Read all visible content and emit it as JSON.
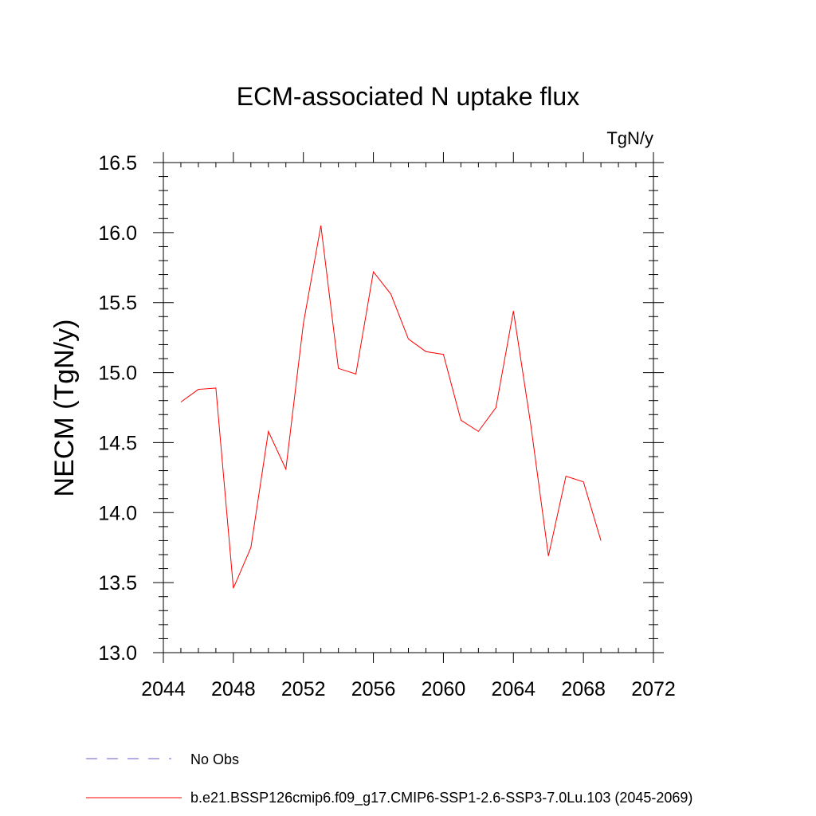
{
  "chart_data": {
    "type": "line",
    "title": "ECM-associated N uptake flux",
    "units_label": "TgN/y",
    "ylabel": "NECM  (TgN/y)",
    "xlabel": "",
    "xlim": [
      2044,
      2072
    ],
    "ylim": [
      13.0,
      16.5
    ],
    "x_ticks": [
      "2044",
      "2048",
      "2052",
      "2056",
      "2060",
      "2064",
      "2068",
      "2072"
    ],
    "y_ticks": [
      "13.0",
      "13.5",
      "14.0",
      "14.5",
      "15.0",
      "15.5",
      "16.0",
      "16.5"
    ],
    "grid": false,
    "legend_position": "bottom",
    "series": [
      {
        "name": "b.e21.BSSP126cmip6.f09_g17.CMIP6-SSP1-2.6-SSP3-7.0Lu.103 (2045-2069)",
        "color": "#ff0000",
        "style": "solid",
        "x": [
          2045,
          2046,
          2047,
          2048,
          2049,
          2050,
          2051,
          2052,
          2053,
          2054,
          2055,
          2056,
          2057,
          2058,
          2059,
          2060,
          2061,
          2062,
          2063,
          2064,
          2065,
          2066,
          2067,
          2068,
          2069
        ],
        "y": [
          14.79,
          14.88,
          14.89,
          13.46,
          13.75,
          14.58,
          14.31,
          15.35,
          16.05,
          15.03,
          14.99,
          15.72,
          15.56,
          15.24,
          15.15,
          15.13,
          14.66,
          14.58,
          14.75,
          15.44,
          14.62,
          13.69,
          14.26,
          14.22,
          13.8
        ]
      }
    ],
    "legend": [
      {
        "label": "No Obs",
        "color": "#6a5acd",
        "style": "dashed"
      },
      {
        "label": "b.e21.BSSP126cmip6.f09_g17.CMIP6-SSP1-2.6-SSP3-7.0Lu.103 (2045-2069)",
        "color": "#ff0000",
        "style": "solid"
      }
    ]
  }
}
